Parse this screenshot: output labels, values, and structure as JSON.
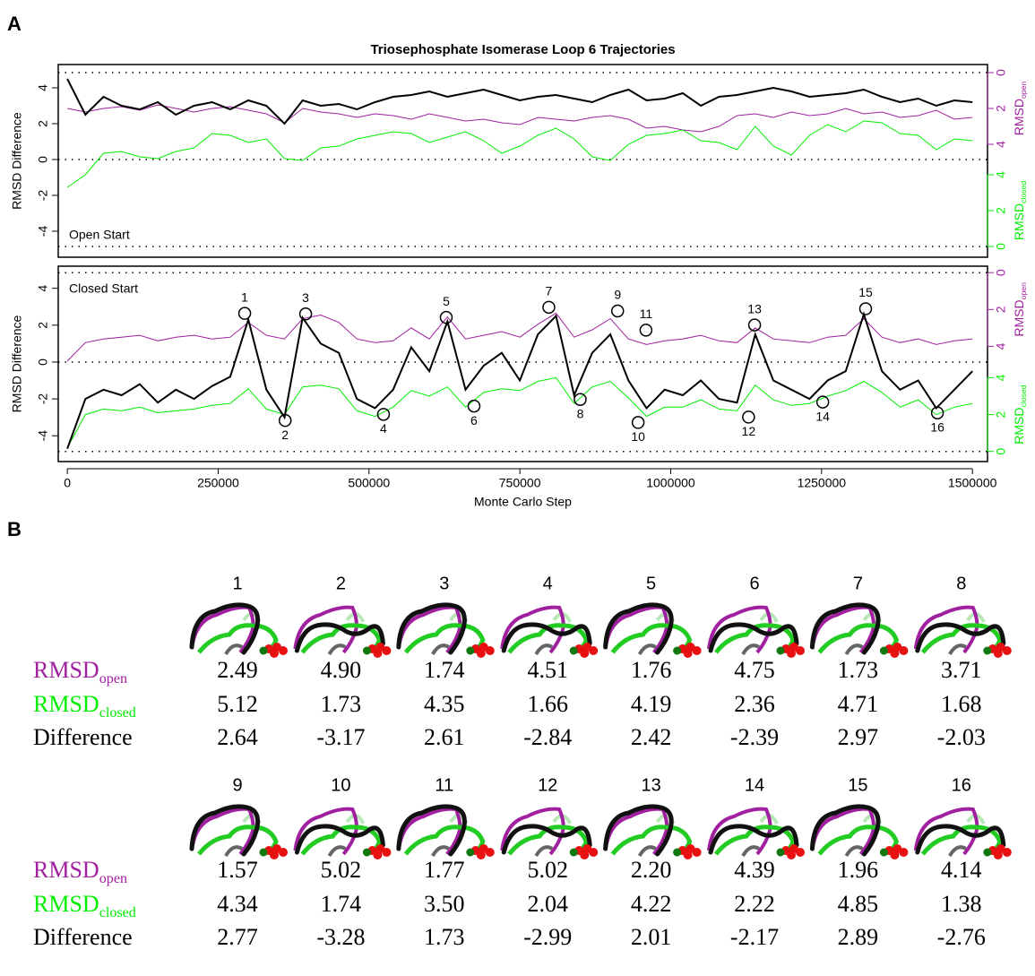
{
  "panel_a_label": "A",
  "panel_b_label": "B",
  "chart_data": [
    {
      "type": "line",
      "title": "Triosephosphate Isomerase Loop 6 Trajectories",
      "ylabel": "RMSD Difference",
      "annotation": "Open Start",
      "y2label": {
        "text": "RMSD",
        "sub": "open"
      },
      "y3label": {
        "text": "RMSD",
        "sub": "closed"
      },
      "xlim": [
        -15000,
        1525000
      ],
      "ylim": [
        -5.45,
        5.3
      ],
      "yticks": [
        -4,
        -2,
        0,
        2,
        4
      ],
      "y2lim": [
        10.3,
        -0.45
      ],
      "y2ticks": [
        0,
        2,
        4
      ],
      "y3lim": [
        -0.6,
        10.15
      ],
      "y3ticks": [
        0,
        2,
        4
      ],
      "reference_lines": [
        4.85,
        0,
        -4.85
      ],
      "x": [
        0,
        30000,
        60000,
        90000,
        120000,
        150000,
        180000,
        210000,
        240000,
        270000,
        300000,
        330000,
        360000,
        390000,
        420000,
        450000,
        480000,
        510000,
        540000,
        570000,
        600000,
        630000,
        660000,
        690000,
        720000,
        750000,
        780000,
        810000,
        840000,
        870000,
        900000,
        930000,
        960000,
        990000,
        1020000,
        1050000,
        1080000,
        1110000,
        1140000,
        1170000,
        1200000,
        1230000,
        1260000,
        1290000,
        1320000,
        1350000,
        1380000,
        1410000,
        1440000,
        1470000,
        1500000
      ],
      "series": [
        {
          "color": "#a020a0",
          "axis": "y2",
          "width": 1,
          "values": [
            2.0,
            2.2,
            2.0,
            1.9,
            2.1,
            1.8,
            2.0,
            2.2,
            2.0,
            1.9,
            2.1,
            2.3,
            2.8,
            2.0,
            2.2,
            2.3,
            2.5,
            2.3,
            2.4,
            2.6,
            2.3,
            2.5,
            2.7,
            2.6,
            2.8,
            2.9,
            2.5,
            2.6,
            2.7,
            2.5,
            2.4,
            2.6,
            3.1,
            3.0,
            3.2,
            3.3,
            3.0,
            2.4,
            2.3,
            2.5,
            2.2,
            2.4,
            2.3,
            2.0,
            2.3,
            2.2,
            2.5,
            2.4,
            2.1,
            2.6,
            2.5
          ]
        },
        {
          "color": "#00ee00",
          "axis": "y3",
          "width": 1,
          "values": [
            3.3,
            4.0,
            5.2,
            5.3,
            5.0,
            4.9,
            5.3,
            5.5,
            6.3,
            6.2,
            5.8,
            6.0,
            4.9,
            4.8,
            5.5,
            5.6,
            6.0,
            6.2,
            6.4,
            6.3,
            5.8,
            6.1,
            6.4,
            5.9,
            5.2,
            5.6,
            6.2,
            6.6,
            6.0,
            5.0,
            4.8,
            5.7,
            6.2,
            6.3,
            6.5,
            5.9,
            5.8,
            5.4,
            6.7,
            5.6,
            5.1,
            6.2,
            6.8,
            6.4,
            7.0,
            6.9,
            6.3,
            6.2,
            5.4,
            6.0,
            5.9
          ]
        },
        {
          "color": "#000000",
          "axis": "y",
          "width": 2,
          "values": [
            4.5,
            2.5,
            3.5,
            3.0,
            2.8,
            3.2,
            2.5,
            3.0,
            3.2,
            2.8,
            3.3,
            3.0,
            2.0,
            3.3,
            3.0,
            3.1,
            2.8,
            3.2,
            3.5,
            3.6,
            3.8,
            3.5,
            3.7,
            3.9,
            3.6,
            3.3,
            3.5,
            3.6,
            3.4,
            3.2,
            3.6,
            3.9,
            3.3,
            3.4,
            3.7,
            3.0,
            3.5,
            3.6,
            3.8,
            4.0,
            3.8,
            3.5,
            3.6,
            3.7,
            3.9,
            3.5,
            3.2,
            3.4,
            3.0,
            3.3,
            3.2
          ]
        }
      ]
    },
    {
      "type": "line",
      "ylabel": "RMSD Difference",
      "xlabel": "Monte Carlo Step",
      "annotation": "Closed Start",
      "y2label": {
        "text": "RMSD",
        "sub": "open"
      },
      "y3label": {
        "text": "RMSD",
        "sub": "closed"
      },
      "xlim": [
        -15000,
        1525000
      ],
      "xticks": [
        0,
        250000,
        500000,
        750000,
        1000000,
        1250000,
        1500000
      ],
      "ylim": [
        -5.4,
        5.2
      ],
      "yticks": [
        -4,
        -2,
        0,
        2,
        4
      ],
      "y2lim": [
        10.25,
        -0.35
      ],
      "y2ticks": [
        0,
        2,
        4
      ],
      "y3lim": [
        -0.55,
        10.05
      ],
      "y3ticks": [
        0,
        2,
        4
      ],
      "reference_lines": [
        4.85,
        0,
        -4.85
      ],
      "x": [
        0,
        30000,
        60000,
        90000,
        120000,
        150000,
        180000,
        210000,
        240000,
        270000,
        300000,
        330000,
        360000,
        390000,
        420000,
        450000,
        480000,
        510000,
        540000,
        570000,
        600000,
        630000,
        660000,
        690000,
        720000,
        750000,
        780000,
        810000,
        840000,
        870000,
        900000,
        930000,
        960000,
        990000,
        1020000,
        1050000,
        1080000,
        1110000,
        1140000,
        1170000,
        1200000,
        1230000,
        1260000,
        1290000,
        1320000,
        1350000,
        1380000,
        1410000,
        1440000,
        1470000,
        1500000
      ],
      "series": [
        {
          "color": "#a020a0",
          "axis": "y2",
          "width": 1,
          "values": [
            4.8,
            3.8,
            3.6,
            3.5,
            3.4,
            3.7,
            3.5,
            3.4,
            3.6,
            3.5,
            2.7,
            3.4,
            3.6,
            2.5,
            2.3,
            2.7,
            3.6,
            3.8,
            3.7,
            3.0,
            3.6,
            2.4,
            3.6,
            3.4,
            3.2,
            3.5,
            2.8,
            2.2,
            3.5,
            3.1,
            2.5,
            3.6,
            3.9,
            3.7,
            3.6,
            3.4,
            3.7,
            3.8,
            3.0,
            3.6,
            3.7,
            3.8,
            3.5,
            3.4,
            2.5,
            3.5,
            3.8,
            3.6,
            3.9,
            3.7,
            3.6
          ]
        },
        {
          "color": "#00ee00",
          "axis": "y3",
          "width": 1,
          "values": [
            0.2,
            2.0,
            2.3,
            2.2,
            2.4,
            2.1,
            2.2,
            2.3,
            2.5,
            2.6,
            3.4,
            2.3,
            2.0,
            3.5,
            3.6,
            3.4,
            2.2,
            1.9,
            2.4,
            3.3,
            3.0,
            3.5,
            2.4,
            3.2,
            3.4,
            3.3,
            3.8,
            4.0,
            2.6,
            3.5,
            3.8,
            2.9,
            1.9,
            2.4,
            2.4,
            2.8,
            2.3,
            2.2,
            3.6,
            2.8,
            2.5,
            2.6,
            3.0,
            3.3,
            3.8,
            3.2,
            2.4,
            2.8,
            2.0,
            2.4,
            2.6
          ]
        },
        {
          "color": "#000000",
          "axis": "y",
          "width": 2,
          "values": [
            -4.7,
            -2.0,
            -1.5,
            -1.8,
            -1.2,
            -2.2,
            -1.5,
            -2.0,
            -1.3,
            -0.8,
            2.3,
            -1.5,
            -3.0,
            2.4,
            1.0,
            0.5,
            -2.0,
            -2.5,
            -1.5,
            0.8,
            -0.5,
            2.2,
            -1.5,
            -0.2,
            0.5,
            -1.0,
            1.5,
            2.5,
            -1.8,
            0.5,
            1.5,
            -1.0,
            -2.5,
            -1.5,
            -1.8,
            -1.0,
            -2.0,
            -2.2,
            1.5,
            -1.0,
            -1.5,
            -2.0,
            -1.0,
            -0.5,
            2.6,
            -0.5,
            -1.5,
            -1.0,
            -2.5,
            -1.5,
            -0.5
          ]
        }
      ],
      "annotations": [
        {
          "label": "1",
          "x": 294000,
          "y": 2.64
        },
        {
          "label": "2",
          "x": 361000,
          "y": -3.17
        },
        {
          "label": "3",
          "x": 395000,
          "y": 2.61
        },
        {
          "label": "4",
          "x": 524000,
          "y": -2.84
        },
        {
          "label": "5",
          "x": 628000,
          "y": 2.42
        },
        {
          "label": "6",
          "x": 674000,
          "y": -2.39
        },
        {
          "label": "7",
          "x": 798000,
          "y": 2.97
        },
        {
          "label": "8",
          "x": 850000,
          "y": -2.03
        },
        {
          "label": "9",
          "x": 912000,
          "y": 2.77
        },
        {
          "label": "10",
          "x": 946000,
          "y": -3.28
        },
        {
          "label": "11",
          "x": 959000,
          "y": 1.73
        },
        {
          "label": "12",
          "x": 1129000,
          "y": -2.99
        },
        {
          "label": "13",
          "x": 1139000,
          "y": 2.01
        },
        {
          "label": "14",
          "x": 1252000,
          "y": -2.17
        },
        {
          "label": "15",
          "x": 1323000,
          "y": 2.89
        },
        {
          "label": "16",
          "x": 1442000,
          "y": -2.76
        }
      ]
    }
  ],
  "table": {
    "row_labels": [
      {
        "text": "RMSD",
        "sub": "open",
        "color": "#a020a0"
      },
      {
        "text": "RMSD",
        "sub": "closed",
        "color": "#00ee00"
      },
      {
        "text": "Difference",
        "color": "#000000"
      }
    ],
    "blocks": [
      {
        "columns": [
          "1",
          "2",
          "3",
          "4",
          "5",
          "6",
          "7",
          "8"
        ],
        "rows": [
          [
            "2.49",
            "4.90",
            "1.74",
            "4.51",
            "1.76",
            "4.75",
            "1.73",
            "3.71"
          ],
          [
            "5.12",
            "1.73",
            "4.35",
            "1.66",
            "4.19",
            "2.36",
            "4.71",
            "1.68"
          ],
          [
            "2.64",
            "-3.17",
            "2.61",
            "-2.84",
            "2.42",
            "-2.39",
            "2.97",
            "-2.03"
          ]
        ]
      },
      {
        "columns": [
          "9",
          "10",
          "11",
          "12",
          "13",
          "14",
          "15",
          "16"
        ],
        "rows": [
          [
            "1.57",
            "5.02",
            "1.77",
            "5.02",
            "2.20",
            "4.39",
            "1.96",
            "4.14"
          ],
          [
            "4.34",
            "1.74",
            "3.50",
            "2.04",
            "4.22",
            "2.22",
            "4.85",
            "1.38"
          ],
          [
            "2.77",
            "-3.28",
            "1.73",
            "-2.99",
            "2.01",
            "-2.17",
            "2.89",
            "-2.76"
          ]
        ]
      }
    ]
  }
}
